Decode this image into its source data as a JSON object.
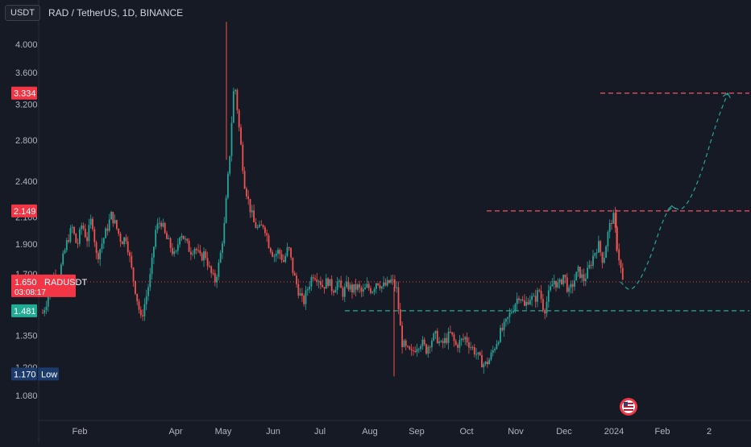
{
  "header": {
    "currency_label": "USDT",
    "symbol_title": "RAD / TetherUS, 1D, BINANCE"
  },
  "colors": {
    "background": "#161a25",
    "up": "#26a69a",
    "down": "#ef5350",
    "text": "#b2b5be",
    "grid": "#1f2330",
    "current_price_line": "#f23645",
    "resistance_line": "#f7525f",
    "support_line": "#22ab94",
    "low_badge": "#1c3a6b",
    "projection": "#26a69a"
  },
  "chart_data": {
    "type": "candlestick",
    "title": "RAD / TetherUS, 1D, BINANCE",
    "x_labels": [
      "Feb",
      "Apr",
      "May",
      "Jun",
      "Jul",
      "Aug",
      "Sep",
      "Oct",
      "Nov",
      "Dec",
      "2024",
      "Feb",
      "2"
    ],
    "y_ticks": [
      4.0,
      3.6,
      3.2,
      2.8,
      2.4,
      2.1,
      1.9,
      1.7,
      1.35,
      1.2,
      1.08
    ],
    "y_tick_labels": [
      "4.000",
      "3.600",
      "3.200",
      "2.800",
      "2.400",
      "2.100",
      "1.900",
      "1.700",
      "1.350",
      "1.200",
      "1.080"
    ],
    "y_scale": "log",
    "grid": false,
    "price_badges": [
      {
        "price": 3.334,
        "label": "3.334",
        "style": "red"
      },
      {
        "price": 2.149,
        "label": "2.149",
        "style": "red"
      },
      {
        "price": 1.65,
        "label": "1.650",
        "tag": "RADUSDT",
        "countdown": "03:08:17",
        "style": "red"
      },
      {
        "price": 1.481,
        "label": "1.481",
        "style": "teal"
      },
      {
        "price": 1.17,
        "label": "1.170",
        "tag": "Low",
        "style": "navy"
      }
    ],
    "current_price": 1.65,
    "resistance_levels": [
      3.334,
      2.149
    ],
    "support_level": 1.481,
    "period_low": 1.17,
    "price_path": [
      1.47,
      1.55,
      1.7,
      1.64,
      1.78,
      1.92,
      2.02,
      1.88,
      2.05,
      1.93,
      2.1,
      1.8,
      1.9,
      2.0,
      2.12,
      2.02,
      1.92,
      1.95,
      1.74,
      1.58,
      1.43,
      1.55,
      1.7,
      2.0,
      2.08,
      1.95,
      1.88,
      1.8,
      2.0,
      1.92,
      1.85,
      1.88,
      1.8,
      1.84,
      1.72,
      1.65,
      1.78,
      2.05,
      2.6,
      3.5,
      2.9,
      2.4,
      2.2,
      2.05,
      2.0,
      2.05,
      1.9,
      1.82,
      1.85,
      1.78,
      1.88,
      1.7,
      1.6,
      1.52,
      1.62,
      1.7,
      1.68,
      1.62,
      1.66,
      1.6,
      1.65,
      1.58,
      1.63,
      1.6,
      1.62,
      1.58,
      1.62,
      1.6,
      1.66,
      1.62,
      1.63,
      1.66,
      1.6,
      1.32,
      1.28,
      1.26,
      1.3,
      1.32,
      1.28,
      1.33,
      1.35,
      1.3,
      1.33,
      1.36,
      1.3,
      1.32,
      1.34,
      1.3,
      1.27,
      1.23,
      1.21,
      1.24,
      1.3,
      1.36,
      1.4,
      1.46,
      1.52,
      1.58,
      1.5,
      1.56,
      1.54,
      1.6,
      1.48,
      1.58,
      1.66,
      1.62,
      1.7,
      1.58,
      1.65,
      1.72,
      1.66,
      1.72,
      1.82,
      1.9,
      1.78,
      1.98,
      2.12,
      1.85,
      1.65
    ],
    "projection_path": [
      [
        "2024-01-05",
        1.65
      ],
      [
        "2024-01-12",
        1.58
      ],
      [
        "2024-01-22",
        1.75
      ],
      [
        "2024-02-01",
        2.1
      ],
      [
        "2024-02-06",
        2.19
      ],
      [
        "2024-02-13",
        2.14
      ],
      [
        "2024-02-23",
        2.4
      ],
      [
        "2024-03-05",
        3.0
      ],
      [
        "2024-03-12",
        3.334
      ]
    ]
  }
}
